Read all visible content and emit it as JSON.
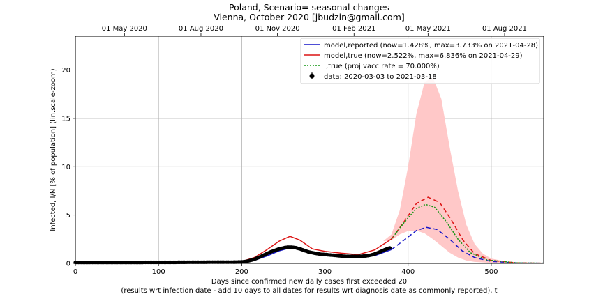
{
  "chart_data": {
    "type": "line",
    "title_line1": "Poland, Scenario= seasonal changes",
    "title_line2": "Vienna, October 2020 [jbudzin@gmail.com]",
    "xlabel_line1": "Days since confirmed new daily cases first exceeded 20",
    "xlabel_line2": "(results wrt infection date - add 10 days to all dates for results wrt diagnosis date as commonly reported), t",
    "ylabel": "Infected, I/N [% of population] (lin.scale-zoom)",
    "xlim": [
      0,
      563
    ],
    "ylim": [
      0,
      23.5
    ],
    "xticks": [
      0,
      100,
      200,
      300,
      400,
      500
    ],
    "yticks": [
      0,
      5,
      10,
      15,
      20
    ],
    "top_axis_ticks": [
      {
        "x": 59,
        "label": "01 May 2020"
      },
      {
        "x": 151,
        "label": "01 Aug 2020"
      },
      {
        "x": 243,
        "label": "01 Nov 2020"
      },
      {
        "x": 335,
        "label": "01 Feb 2021"
      },
      {
        "x": 424,
        "label": "01 May 2021"
      },
      {
        "x": 516,
        "label": "01 Aug 2021"
      }
    ],
    "grid": true,
    "legend_position": "top-right",
    "colors": {
      "reported": "#1414c8",
      "true": "#dc1414",
      "vacc": "#149614",
      "band": "#ffc8c8",
      "data": "#000000"
    },
    "series": [
      {
        "name": "model,reported (now=1.428%, max=3.733% on 2021-04-28)",
        "points": [
          [
            0,
            0.05
          ],
          [
            100,
            0.06
          ],
          [
            180,
            0.08
          ],
          [
            200,
            0.1
          ],
          [
            215,
            0.3
          ],
          [
            230,
            0.75
          ],
          [
            245,
            1.3
          ],
          [
            258,
            1.6
          ],
          [
            270,
            1.5
          ],
          [
            285,
            1.05
          ],
          [
            300,
            0.85
          ],
          [
            320,
            0.7
          ],
          [
            340,
            0.6
          ],
          [
            360,
            0.8
          ],
          [
            380,
            1.43
          ]
        ],
        "dash_points": [
          [
            380,
            1.43
          ],
          [
            395,
            2.4
          ],
          [
            410,
            3.4
          ],
          [
            422,
            3.73
          ],
          [
            435,
            3.5
          ],
          [
            450,
            2.5
          ],
          [
            465,
            1.3
          ],
          [
            480,
            0.6
          ],
          [
            500,
            0.2
          ],
          [
            530,
            0.05
          ],
          [
            563,
            0.02
          ]
        ]
      },
      {
        "name": "model,true (now=2.522%, max=6.836% on 2021-04-29)",
        "points": [
          [
            0,
            0.1
          ],
          [
            100,
            0.12
          ],
          [
            180,
            0.13
          ],
          [
            200,
            0.2
          ],
          [
            215,
            0.6
          ],
          [
            230,
            1.4
          ],
          [
            245,
            2.3
          ],
          [
            258,
            2.8
          ],
          [
            270,
            2.4
          ],
          [
            285,
            1.5
          ],
          [
            300,
            1.25
          ],
          [
            320,
            1.05
          ],
          [
            340,
            0.9
          ],
          [
            360,
            1.4
          ],
          [
            380,
            2.52
          ]
        ],
        "dash_points": [
          [
            380,
            2.52
          ],
          [
            395,
            4.3
          ],
          [
            410,
            6.2
          ],
          [
            424,
            6.84
          ],
          [
            438,
            6.3
          ],
          [
            452,
            4.5
          ],
          [
            466,
            2.4
          ],
          [
            480,
            1.0
          ],
          [
            500,
            0.3
          ],
          [
            530,
            0.06
          ],
          [
            563,
            0.02
          ]
        ]
      },
      {
        "name": "I,true (proj vacc rate = 70.000%)",
        "points": [
          [
            380,
            2.52
          ],
          [
            395,
            4.2
          ],
          [
            410,
            5.7
          ],
          [
            421,
            6.1
          ],
          [
            432,
            5.8
          ],
          [
            446,
            4.3
          ],
          [
            460,
            2.5
          ],
          [
            475,
            1.1
          ],
          [
            495,
            0.35
          ],
          [
            530,
            0.06
          ],
          [
            563,
            0.02
          ]
        ]
      },
      {
        "name": "data: 2020-03-03 to 2021-03-18",
        "points": [
          [
            0,
            0.1
          ],
          [
            15,
            0.1
          ],
          [
            30,
            0.1
          ],
          [
            45,
            0.1
          ],
          [
            60,
            0.1
          ],
          [
            75,
            0.1
          ],
          [
            90,
            0.11
          ],
          [
            105,
            0.11
          ],
          [
            120,
            0.11
          ],
          [
            135,
            0.12
          ],
          [
            150,
            0.12
          ],
          [
            165,
            0.13
          ],
          [
            180,
            0.13
          ],
          [
            190,
            0.13
          ],
          [
            200,
            0.15
          ],
          [
            205,
            0.2
          ],
          [
            210,
            0.3
          ],
          [
            215,
            0.42
          ],
          [
            220,
            0.6
          ],
          [
            225,
            0.8
          ],
          [
            230,
            1.0
          ],
          [
            235,
            1.2
          ],
          [
            240,
            1.35
          ],
          [
            245,
            1.5
          ],
          [
            250,
            1.6
          ],
          [
            255,
            1.68
          ],
          [
            260,
            1.68
          ],
          [
            265,
            1.62
          ],
          [
            270,
            1.5
          ],
          [
            275,
            1.35
          ],
          [
            280,
            1.2
          ],
          [
            285,
            1.1
          ],
          [
            290,
            1.02
          ],
          [
            295,
            0.95
          ],
          [
            300,
            0.92
          ],
          [
            305,
            0.88
          ],
          [
            310,
            0.84
          ],
          [
            315,
            0.8
          ],
          [
            320,
            0.76
          ],
          [
            325,
            0.72
          ],
          [
            330,
            0.72
          ],
          [
            335,
            0.72
          ],
          [
            340,
            0.72
          ],
          [
            345,
            0.74
          ],
          [
            350,
            0.78
          ],
          [
            355,
            0.85
          ],
          [
            360,
            0.98
          ],
          [
            365,
            1.15
          ],
          [
            370,
            1.35
          ],
          [
            375,
            1.52
          ],
          [
            378,
            1.6
          ]
        ]
      }
    ],
    "band_upper": [
      [
        370,
        2.3
      ],
      [
        380,
        3.0
      ],
      [
        390,
        5.5
      ],
      [
        400,
        10.0
      ],
      [
        410,
        15.5
      ],
      [
        420,
        18.8
      ],
      [
        430,
        19.2
      ],
      [
        440,
        17.0
      ],
      [
        450,
        12.0
      ],
      [
        460,
        7.5
      ],
      [
        470,
        4.0
      ],
      [
        480,
        2.0
      ],
      [
        490,
        1.0
      ],
      [
        500,
        0.5
      ],
      [
        520,
        0.15
      ],
      [
        563,
        0.03
      ]
    ],
    "band_lower": [
      [
        370,
        2.3
      ],
      [
        380,
        2.4
      ],
      [
        390,
        3.0
      ],
      [
        400,
        3.35
      ],
      [
        410,
        3.4
      ],
      [
        420,
        3.1
      ],
      [
        430,
        2.5
      ],
      [
        440,
        1.8
      ],
      [
        450,
        1.1
      ],
      [
        460,
        0.6
      ],
      [
        470,
        0.3
      ],
      [
        480,
        0.15
      ],
      [
        500,
        0.05
      ],
      [
        563,
        0.01
      ]
    ]
  }
}
